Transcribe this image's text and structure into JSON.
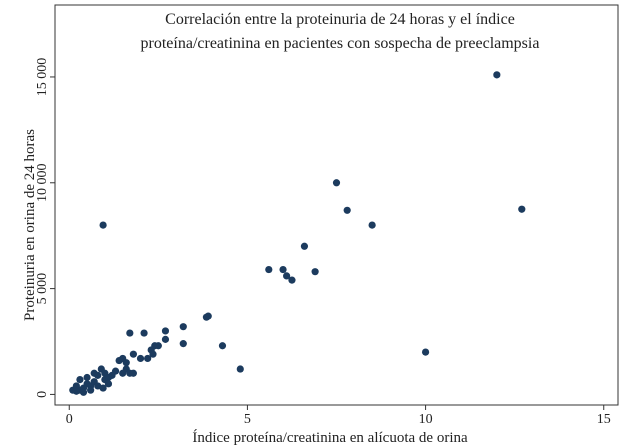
{
  "chart_data": {
    "type": "scatter",
    "title": "Correlación entre la proteinuria de 24 horas y el índice",
    "subtitle": "proteína/creatinina en pacientes con sospecha de preeclampsia",
    "x_label": "Índice proteína/creatinina en alícuota de orina",
    "y_label": "Proteinuria en orina de 24 horas",
    "color": "#1c3b5e",
    "xlim": [
      -0.4,
      15.4
    ],
    "ylim": [
      -500,
      18400
    ],
    "xticks": [
      0,
      5,
      10,
      15
    ],
    "yticks": [
      0,
      {
        "value": 5000,
        "label": "5 000"
      },
      {
        "value": 10000,
        "label": "10 000"
      },
      {
        "value": 15000,
        "label": "15 000"
      }
    ],
    "x": [
      12,
      7.5,
      7.8,
      12.7,
      0.95,
      8.5,
      6.6,
      5.6,
      6.0,
      6.1,
      6.25,
      6.9,
      10,
      3.85,
      3.9,
      4.3,
      4.8,
      3.2,
      3.2,
      2.7,
      2.7,
      1.7,
      2.1,
      2.4,
      2.5,
      2.3,
      2.35,
      2.2,
      2.0,
      1.8,
      1.6,
      1.5,
      1.4,
      1.6,
      1.7,
      1.8,
      1.5,
      1.3,
      1.2,
      0.1,
      0.2,
      0.3,
      0.4,
      0.5,
      0.5,
      0.6,
      0.7,
      0.8,
      0.9,
      1.0,
      1.1,
      1.0,
      0.3,
      0.6,
      0.8,
      0.95,
      0.4,
      0.2,
      0.7,
      1.1
    ],
    "values": [
      15100,
      10000,
      8700,
      8750,
      8000,
      8000,
      7000,
      5900,
      5900,
      5600,
      5400,
      5800,
      2000,
      3650,
      3700,
      2300,
      1200,
      3200,
      2400,
      3000,
      2600,
      2900,
      2900,
      2300,
      2300,
      2100,
      1900,
      1700,
      1700,
      1900,
      1500,
      1700,
      1600,
      1200,
      1000,
      1000,
      1000,
      1100,
      900,
      200,
      400,
      200,
      300,
      500,
      800,
      400,
      600,
      900,
      1200,
      700,
      500,
      1000,
      700,
      200,
      400,
      300,
      100,
      150,
      1000,
      800
    ]
  }
}
